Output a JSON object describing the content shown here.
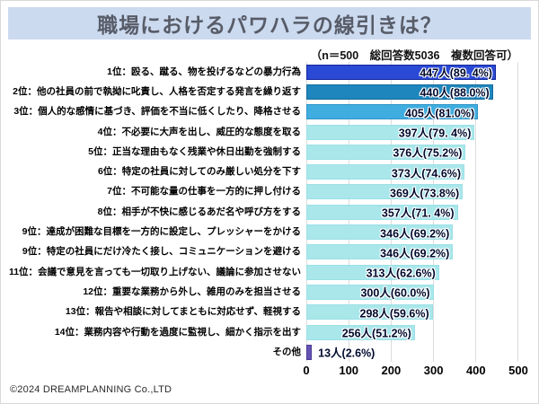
{
  "header": {
    "title": "職場におけるパワハラの線引きは？",
    "title_bg": "#ccdaef",
    "title_color": "#575c68"
  },
  "survey_note": "（n＝500　総回答数5036　複数回答可）",
  "footer": {
    "credit": "©2024 DREAMPLANNING Co.,LTD"
  },
  "chart_data": {
    "type": "bar",
    "orientation": "horizontal",
    "title": "職場におけるパワハラの線引きは？",
    "note": "（n＝500　総回答数5036　複数回答可）",
    "xlim": [
      0,
      500
    ],
    "x_ticks": [
      "0",
      "100",
      "200",
      "300",
      "400",
      "500"
    ],
    "grid": true,
    "legend": false,
    "categories": [
      "1位：殴る、蹴る、物を投げるなどの暴力行為",
      "2位：他の社員の前で執拗に叱責し、人格を否定する発言を繰り返す",
      "3位：個人的な感情に基づき、評価を不当に低くしたり、降格させる",
      "4位：不必要に大声を出し、威圧的な態度を取る",
      "5位：正当な理由もなく残業や休日出勤を強制する",
      "6位：特定の社員に対してのみ厳しい処分を下す",
      "7位：不可能な量の仕事を一方的に押し付ける",
      "8位：相手が不快に感じるあだ名や呼び方をする",
      "9位：達成が困難な目標を一方的に設定し、プレッシャーをかける",
      "9位：特定の社員にだけ冷たく接し、コミュニケーションを避ける",
      "11位：会議で意見を言っても一切取り上げない、議論に参加させない",
      "12位：重要な業務から外し、雑用のみを担当させる",
      "13位：報告や相談に対してまともに対応せず、軽視する",
      "14位：業務内容や行動を過度に監視し、細かく指示を出す",
      "その他"
    ],
    "values": [
      447,
      440,
      405,
      397,
      376,
      373,
      369,
      357,
      346,
      346,
      313,
      300,
      298,
      256,
      13
    ],
    "percentages": [
      89.4,
      88.0,
      81.0,
      79.4,
      75.2,
      74.6,
      73.8,
      71.4,
      69.2,
      69.2,
      62.6,
      60.0,
      59.6,
      51.2,
      2.6
    ],
    "value_labels": [
      "447人(89. 4%)",
      "440人(88.0%)",
      "405人(81.0%)",
      "397人(79. 4%)",
      "376人(75.2%)",
      "373人(74.6%)",
      "369人(73.8%)",
      "357人(71. 4%)",
      "346人(69.2%)",
      "346人(69.2%)",
      "313人(62.6%)",
      "300人(60.0%)",
      "298人(59.6%)",
      "256人(51.2%)",
      "13人(2.6%)"
    ],
    "bar_colors": [
      "#2a49d5",
      "#1e86bc",
      "#3faddf",
      "#a9e7eb",
      "#a9e7eb",
      "#a9e7eb",
      "#a9e7eb",
      "#a9e7eb",
      "#a9e7eb",
      "#a9e7eb",
      "#a9e7eb",
      "#a9e7eb",
      "#a9e7eb",
      "#a9e7eb",
      "#6553b5"
    ],
    "bar_border_colors": [
      "#14269b",
      "#156d9e",
      "#2f95c6",
      "#9be0e6",
      "#9be0e6",
      "#9be0e6",
      "#9be0e6",
      "#9be0e6",
      "#9be0e6",
      "#9be0e6",
      "#9be0e6",
      "#9be0e6",
      "#9be0e6",
      "#9be0e6",
      "#4a3a92"
    ],
    "grid_color": "#dcdcdc"
  }
}
